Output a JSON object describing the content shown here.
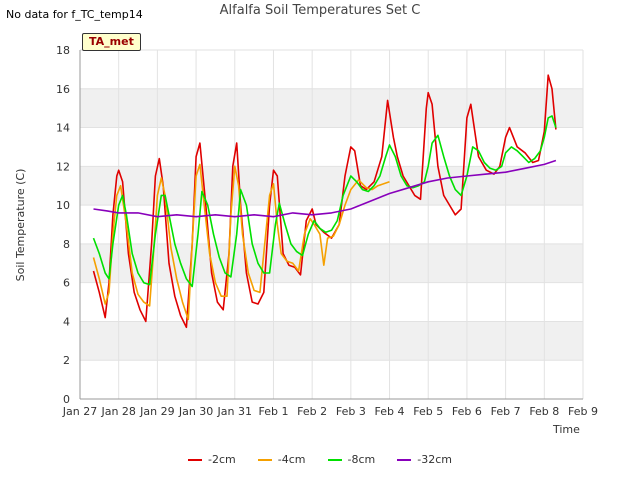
{
  "header": {
    "nodata_text": "No data for f_TC_temp14",
    "badge": "TA_met"
  },
  "chart_data": {
    "type": "line",
    "title": "Alfalfa Soil Temperatures Set C",
    "xlabel": "Time",
    "ylabel": "Soil Temperature (C)",
    "ylim": [
      0,
      18
    ],
    "yticks": [
      0,
      2,
      4,
      6,
      8,
      10,
      12,
      14,
      16,
      18
    ],
    "xlim": [
      0,
      13
    ],
    "xtick_labels": [
      "Jan 27",
      "Jan 28",
      "Jan 29",
      "Jan 30",
      "Jan 31",
      "Feb 1",
      "Feb 2",
      "Feb 3",
      "Feb 4",
      "Feb 5",
      "Feb 6",
      "Feb 7",
      "Feb 8",
      "Feb 9"
    ],
    "grid": true,
    "legend_position": "bottom-center",
    "series": [
      {
        "name": "-2cm",
        "color": "#e00000",
        "x": [
          0.35,
          0.5,
          0.65,
          0.75,
          0.85,
          0.95,
          1.0,
          1.1,
          1.25,
          1.4,
          1.55,
          1.7,
          1.85,
          1.95,
          2.05,
          2.15,
          2.3,
          2.45,
          2.6,
          2.75,
          2.9,
          3.0,
          3.1,
          3.25,
          3.4,
          3.55,
          3.7,
          3.85,
          3.95,
          4.05,
          4.15,
          4.3,
          4.45,
          4.6,
          4.75,
          4.9,
          5.0,
          5.1,
          5.25,
          5.4,
          5.55,
          5.7,
          5.85,
          6.0,
          6.1,
          6.3,
          6.5,
          6.7,
          6.85,
          7.0,
          7.1,
          7.25,
          7.4,
          7.6,
          7.8,
          7.95,
          8.1,
          8.2,
          8.35,
          8.5,
          8.65,
          8.8,
          8.95,
          9.0,
          9.1,
          9.25,
          9.4,
          9.55,
          9.7,
          9.85,
          10.0,
          10.1,
          10.3,
          10.5,
          10.7,
          10.85,
          11.0,
          11.1,
          11.3,
          11.5,
          11.7,
          11.85,
          12.0,
          12.1,
          12.2,
          12.3
        ],
        "values": [
          6.6,
          5.5,
          4.2,
          6.0,
          9.5,
          11.5,
          11.8,
          11.2,
          7.5,
          5.5,
          4.6,
          4.0,
          8.0,
          11.5,
          12.4,
          11.0,
          7.0,
          5.3,
          4.3,
          3.7,
          8.0,
          12.5,
          13.2,
          10.0,
          6.5,
          5.0,
          4.6,
          7.5,
          12.0,
          13.2,
          10.0,
          6.5,
          5.0,
          4.9,
          5.5,
          10.0,
          11.8,
          11.5,
          7.5,
          6.9,
          6.8,
          6.4,
          9.2,
          9.8,
          9.0,
          8.6,
          8.3,
          9.0,
          11.5,
          13.0,
          12.8,
          11.0,
          10.8,
          11.2,
          12.5,
          15.4,
          13.5,
          12.5,
          11.5,
          11.0,
          10.5,
          10.3,
          15.0,
          15.8,
          15.2,
          12.0,
          10.5,
          10.0,
          9.5,
          9.8,
          14.5,
          15.2,
          12.5,
          11.8,
          11.6,
          12.0,
          13.5,
          14.0,
          13.0,
          12.7,
          12.2,
          12.3,
          13.8,
          16.7,
          16.0,
          13.9
        ]
      },
      {
        "name": "-4cm",
        "color": "#f5a000",
        "x": [
          0.35,
          0.5,
          0.65,
          0.75,
          0.85,
          0.95,
          1.05,
          1.2,
          1.35,
          1.5,
          1.65,
          1.8,
          1.9,
          2.0,
          2.1,
          2.2,
          2.35,
          2.5,
          2.65,
          2.8,
          2.9,
          3.0,
          3.1,
          3.2,
          3.35,
          3.5,
          3.65,
          3.8,
          3.9,
          4.0,
          4.1,
          4.2,
          4.35,
          4.5,
          4.65,
          4.8,
          4.9,
          5.0,
          5.1,
          5.2,
          5.35,
          5.5,
          5.65,
          5.8,
          5.95,
          6.05,
          6.2,
          6.3,
          6.4,
          6.55,
          6.7,
          6.85,
          7.0,
          7.2,
          7.4,
          7.55,
          7.7,
          7.85,
          8.0
        ],
        "values": [
          7.3,
          6.2,
          4.9,
          5.5,
          8.5,
          10.5,
          11.0,
          9.0,
          6.5,
          5.4,
          5.0,
          4.8,
          7.5,
          10.5,
          11.4,
          10.5,
          7.8,
          6.2,
          5.0,
          4.1,
          8.0,
          11.5,
          12.1,
          10.2,
          7.5,
          6.0,
          5.3,
          5.3,
          9.5,
          12.0,
          11.0,
          8.5,
          6.5,
          5.6,
          5.5,
          8.5,
          10.5,
          11.1,
          9.0,
          7.5,
          7.1,
          7.0,
          6.6,
          8.5,
          9.3,
          9.0,
          8.5,
          6.9,
          8.3,
          8.4,
          9.0,
          10.0,
          10.8,
          11.3,
          10.9,
          10.8,
          11.0,
          11.1,
          11.2
        ]
      },
      {
        "name": "-8cm",
        "color": "#00e000",
        "x": [
          0.35,
          0.5,
          0.65,
          0.75,
          0.85,
          1.0,
          1.1,
          1.2,
          1.35,
          1.5,
          1.65,
          1.8,
          1.95,
          2.1,
          2.2,
          2.3,
          2.45,
          2.6,
          2.75,
          2.9,
          3.05,
          3.15,
          3.3,
          3.45,
          3.6,
          3.75,
          3.9,
          4.05,
          4.15,
          4.3,
          4.45,
          4.6,
          4.75,
          4.9,
          5.05,
          5.15,
          5.3,
          5.45,
          5.6,
          5.75,
          5.9,
          6.05,
          6.2,
          6.35,
          6.5,
          6.65,
          6.8,
          7.0,
          7.15,
          7.3,
          7.45,
          7.6,
          7.75,
          7.9,
          8.0,
          8.15,
          8.3,
          8.45,
          8.6,
          8.75,
          8.9,
          9.0,
          9.1,
          9.25,
          9.4,
          9.55,
          9.7,
          9.85,
          10.0,
          10.15,
          10.3,
          10.45,
          10.6,
          10.75,
          10.9,
          11.0,
          11.15,
          11.3,
          11.45,
          11.6,
          11.75,
          11.9,
          12.0,
          12.1,
          12.2,
          12.3
        ],
        "values": [
          8.3,
          7.5,
          6.5,
          6.2,
          8.0,
          10.0,
          10.5,
          9.5,
          7.5,
          6.5,
          6.0,
          5.9,
          8.5,
          10.5,
          10.5,
          9.5,
          8.0,
          7.0,
          6.2,
          5.8,
          8.5,
          10.7,
          10.0,
          8.5,
          7.3,
          6.5,
          6.3,
          8.5,
          10.8,
          10.0,
          8.0,
          7.0,
          6.5,
          6.5,
          9.0,
          10.1,
          9.0,
          8.0,
          7.6,
          7.4,
          8.5,
          9.2,
          8.8,
          8.6,
          8.7,
          9.2,
          10.5,
          11.5,
          11.2,
          10.8,
          10.7,
          11.0,
          11.5,
          12.5,
          13.1,
          12.5,
          11.5,
          11.0,
          10.9,
          11.0,
          11.2,
          12.0,
          13.2,
          13.6,
          12.5,
          11.5,
          10.8,
          10.5,
          11.5,
          13.0,
          12.8,
          12.2,
          11.9,
          11.8,
          12.0,
          12.7,
          13.0,
          12.8,
          12.5,
          12.2,
          12.4,
          12.8,
          13.5,
          14.5,
          14.6,
          14.0
        ]
      },
      {
        "name": "-32cm",
        "color": "#8800bb",
        "x": [
          0.35,
          0.7,
          1.0,
          1.5,
          2.0,
          2.5,
          3.0,
          3.5,
          4.0,
          4.5,
          5.0,
          5.5,
          6.0,
          6.5,
          7.0,
          7.5,
          8.0,
          8.5,
          9.0,
          9.5,
          10.0,
          10.5,
          11.0,
          11.5,
          12.0,
          12.3
        ],
        "values": [
          9.8,
          9.7,
          9.6,
          9.6,
          9.4,
          9.5,
          9.4,
          9.5,
          9.4,
          9.5,
          9.4,
          9.6,
          9.5,
          9.6,
          9.8,
          10.2,
          10.6,
          10.9,
          11.2,
          11.4,
          11.5,
          11.6,
          11.7,
          11.9,
          12.1,
          12.3
        ]
      }
    ]
  }
}
